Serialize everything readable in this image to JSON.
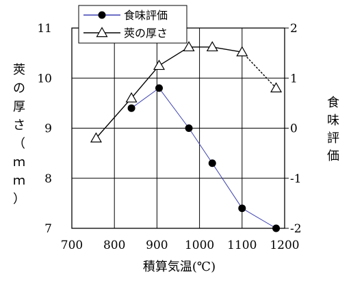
{
  "chart_data": {
    "type": "line",
    "xlabel": "積算気温(℃)",
    "ylabel_left": [
      "莢",
      "の",
      "厚",
      "さ",
      "（",
      "ｍ",
      "ｍ",
      "）"
    ],
    "ylabel_right": [
      "食",
      "味",
      "評",
      "価"
    ],
    "xlim": [
      700,
      1200
    ],
    "ylim_left": [
      7,
      11
    ],
    "ylim_right": [
      -2,
      2
    ],
    "x_ticks": [
      700,
      800,
      900,
      1000,
      1100,
      1200
    ],
    "y_left_ticks": [
      7,
      8,
      9,
      10,
      11
    ],
    "y_right_ticks": [
      "-2",
      "-1",
      "0",
      "1",
      "2"
    ],
    "y_right_values": [
      -2,
      -1,
      0,
      1,
      2
    ],
    "grid": true,
    "legend_position": "top-left",
    "series": [
      {
        "name": "食味評価",
        "axis": "right",
        "marker": "filled-circle",
        "color": "#3b3fb0",
        "line_style": "solid",
        "x": [
          840,
          905,
          975,
          1030,
          1100,
          1180
        ],
        "y": [
          0.4,
          0.8,
          0.0,
          -0.7,
          -1.6,
          -2.0
        ]
      },
      {
        "name": "莢の厚さ",
        "axis": "left",
        "marker": "open-triangle",
        "color": "#000000",
        "line_style": "solid",
        "x": [
          757,
          840,
          905,
          975,
          1030,
          1100,
          1180
        ],
        "y": [
          8.8,
          9.6,
          10.25,
          10.62,
          10.62,
          10.52,
          9.8
        ],
        "dashed_last_segment": true
      }
    ]
  }
}
